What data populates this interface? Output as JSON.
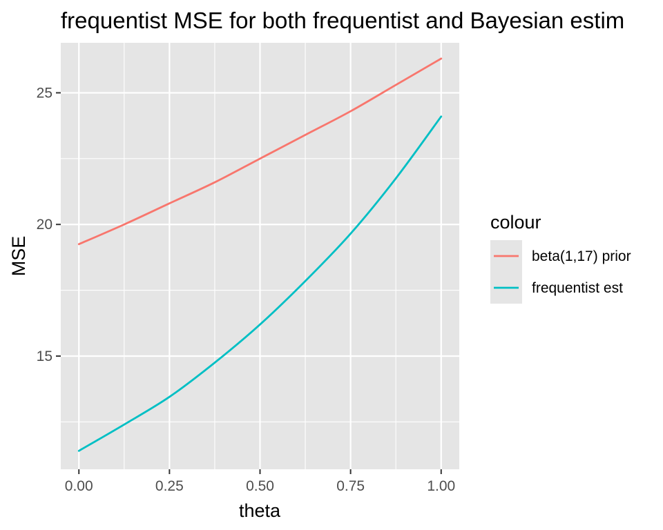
{
  "chart_data": {
    "type": "line",
    "title": "frequentist MSE for both frequentist and Bayesian estim",
    "xlabel": "theta",
    "ylabel": "MSE",
    "xlim": [
      -0.05,
      1.05
    ],
    "ylim": [
      10.7,
      26.9
    ],
    "x_ticks": [
      0.0,
      0.25,
      0.5,
      0.75,
      1.0
    ],
    "x_tick_labels": [
      "0.00",
      "0.25",
      "0.50",
      "0.75",
      "1.00"
    ],
    "y_ticks": [
      15,
      20,
      25
    ],
    "y_tick_labels": [
      "15",
      "20",
      "25"
    ],
    "grid": true,
    "legend": {
      "title": "colour",
      "position": "right"
    },
    "x": [
      0.0,
      0.125,
      0.25,
      0.375,
      0.5,
      0.625,
      0.75,
      0.875,
      1.0
    ],
    "series": [
      {
        "name": "beta(1,17) prior",
        "color": "#F8766D",
        "values": [
          19.25,
          20.0,
          20.8,
          21.6,
          22.5,
          23.4,
          24.3,
          25.3,
          26.3
        ]
      },
      {
        "name": "frequentist est",
        "color": "#00BFC4",
        "values": [
          11.4,
          12.4,
          13.45,
          14.75,
          16.2,
          17.85,
          19.65,
          21.75,
          24.1
        ]
      }
    ]
  }
}
